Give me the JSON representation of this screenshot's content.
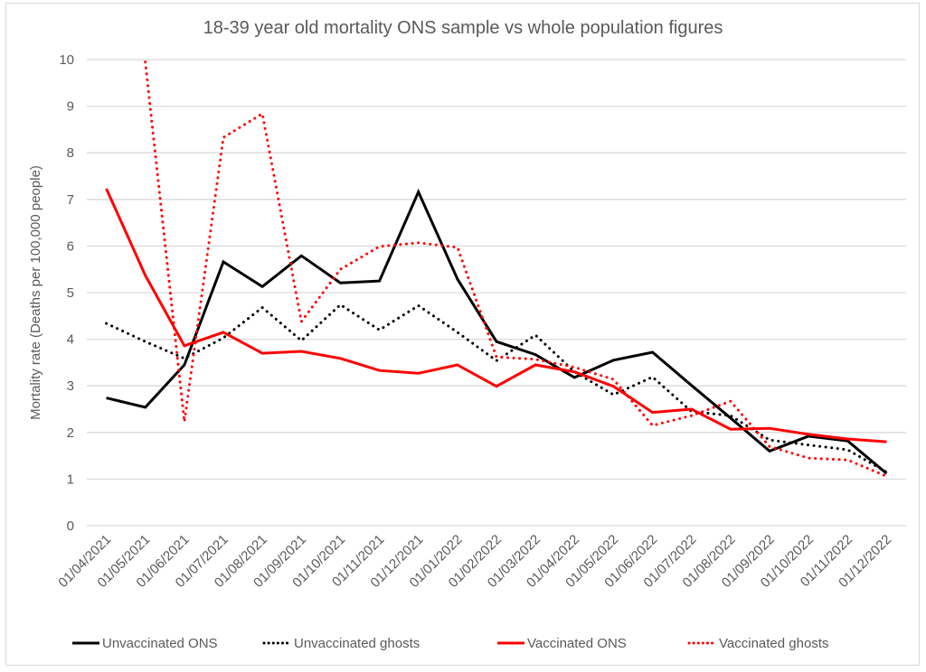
{
  "chart_data": {
    "type": "line",
    "title": "18-39 year old mortality ONS sample vs whole population figures",
    "xlabel": "",
    "ylabel": "Mortality rate (Deaths per 100,000 people)",
    "ylim": [
      0,
      10
    ],
    "yticks": [
      "0",
      "1",
      "2",
      "3",
      "4",
      "5",
      "6",
      "7",
      "8",
      "9",
      "10"
    ],
    "grid": "horizontal",
    "legend_position": "bottom",
    "categories": [
      "01/04/2021",
      "01/05/2021",
      "01/06/2021",
      "01/07/2021",
      "01/08/2021",
      "01/09/2021",
      "01/10/2021",
      "01/11/2021",
      "01/12/2021",
      "01/01/2022",
      "01/02/2022",
      "01/03/2022",
      "01/04/2022",
      "01/05/2022",
      "01/06/2022",
      "01/07/2022",
      "01/08/2022",
      "01/09/2022",
      "01/10/2022",
      "01/11/2022",
      "01/12/2022"
    ],
    "series": [
      {
        "name": "Unvaccinated ONS",
        "color": "#000000",
        "style": "solid",
        "values": [
          2.74,
          2.54,
          3.45,
          5.66,
          5.13,
          5.79,
          5.21,
          5.25,
          7.16,
          5.29,
          3.95,
          3.67,
          3.18,
          3.55,
          3.72,
          3.01,
          2.31,
          1.6,
          1.92,
          1.82,
          1.12
        ]
      },
      {
        "name": "Unvaccinated ghosts",
        "color": "#000000",
        "style": "dotted",
        "values": [
          4.34,
          3.95,
          3.59,
          4.03,
          4.68,
          3.97,
          4.74,
          4.2,
          4.72,
          4.15,
          3.54,
          4.09,
          3.3,
          2.81,
          3.19,
          2.45,
          2.36,
          1.84,
          1.73,
          1.63,
          1.15
        ]
      },
      {
        "name": "Vaccinated ONS",
        "color": "#ff0000",
        "style": "solid",
        "values": [
          7.23,
          5.37,
          3.86,
          4.15,
          3.7,
          3.74,
          3.59,
          3.33,
          3.27,
          3.45,
          2.99,
          3.45,
          3.3,
          2.99,
          2.43,
          2.5,
          2.07,
          2.09,
          1.96,
          1.86,
          1.8
        ]
      },
      {
        "name": "Vaccinated ghosts",
        "color": "#ff0000",
        "style": "dotted",
        "values": [
          null,
          9.95,
          2.23,
          8.33,
          8.84,
          4.38,
          5.5,
          5.99,
          6.07,
          5.97,
          3.62,
          3.57,
          3.4,
          3.14,
          2.15,
          2.36,
          2.67,
          1.7,
          1.45,
          1.41,
          1.06
        ]
      }
    ]
  }
}
